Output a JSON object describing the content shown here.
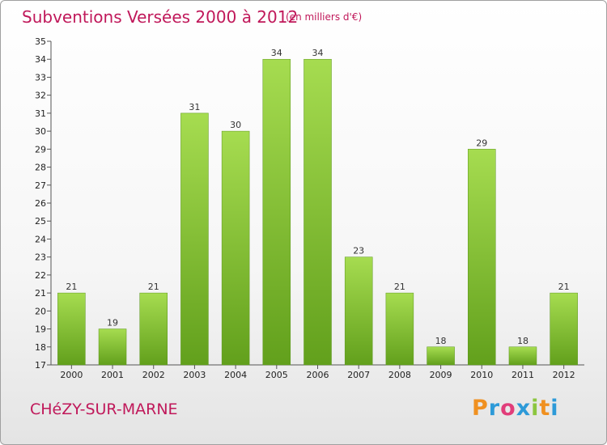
{
  "header": {
    "title": "Subventions Versées 2000 à 2012",
    "subtitle": "(en milliers d'€)"
  },
  "footer": {
    "commune": "CHéZY-SUR-MARNE",
    "logo_text": "Proxiti"
  },
  "colors": {
    "bar_light": "#a6dc50",
    "bar_dark": "#62a01c",
    "accent": "#c0185a"
  },
  "chart_data": {
    "type": "bar",
    "title": "Subventions Versées 2000 à 2012",
    "subtitle": "(en milliers d'€)",
    "categories": [
      "2000",
      "2001",
      "2002",
      "2003",
      "2004",
      "2005",
      "2006",
      "2007",
      "2008",
      "2009",
      "2010",
      "2011",
      "2012"
    ],
    "values": [
      21,
      19,
      21,
      31,
      30,
      34,
      34,
      23,
      21,
      18,
      29,
      18,
      21
    ],
    "ylim": [
      17,
      35
    ],
    "yticks": [
      17,
      18,
      19,
      20,
      21,
      22,
      23,
      24,
      25,
      26,
      27,
      28,
      29,
      30,
      31,
      32,
      33,
      34,
      35
    ],
    "grid": false
  }
}
